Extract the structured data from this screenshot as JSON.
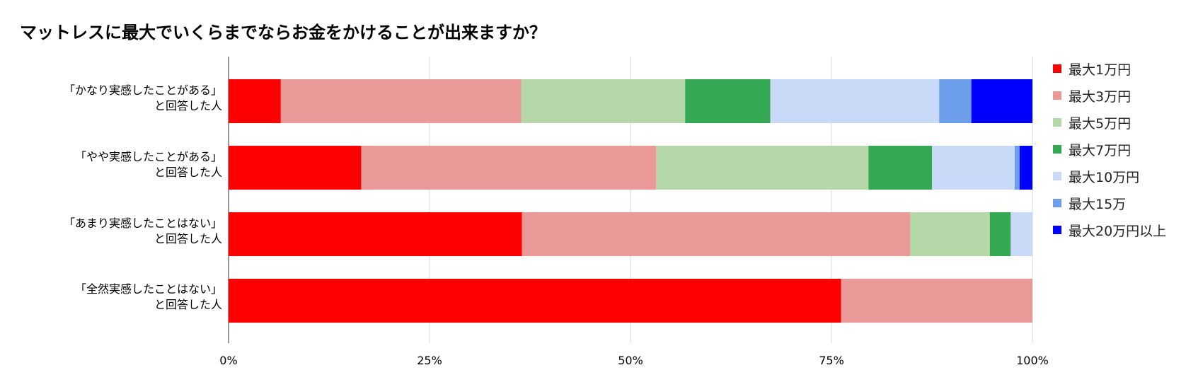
{
  "chart_data": {
    "type": "bar",
    "orientation": "horizontal",
    "stacked": "percent",
    "title": "マットレスに最大でいくらまでならお金をかけることが出来ますか？",
    "categories": [
      {
        "line1": "「かなり実感したことがある」",
        "line2": "と回答した人"
      },
      {
        "line1": "「やや実感したことがある」",
        "line2": "と回答した人"
      },
      {
        "line1": "「あまり実感したことはない」",
        "line2": "と回答した人"
      },
      {
        "line1": "「全然実感したことはない」",
        "line2": "と回答した人"
      }
    ],
    "series": [
      {
        "name": "最大1万円",
        "color": "#ff0000",
        "values": [
          6.5,
          16.5,
          36.5,
          76.2
        ]
      },
      {
        "name": "最大3万円",
        "color": "#ea9999",
        "values": [
          29.9,
          36.7,
          48.3,
          23.8
        ]
      },
      {
        "name": "最大5万円",
        "color": "#b6d7a8",
        "values": [
          20.4,
          26.4,
          9.9,
          0
        ]
      },
      {
        "name": "最大7万円",
        "color": "#34a853",
        "values": [
          10.6,
          7.9,
          2.6,
          0
        ]
      },
      {
        "name": "最大10万円",
        "color": "#c9daf8",
        "values": [
          21.0,
          10.3,
          2.7,
          0
        ]
      },
      {
        "name": "最大15万",
        "color": "#6d9eeb",
        "values": [
          4.0,
          0.6,
          0,
          0
        ]
      },
      {
        "name": "最大20万円以上",
        "color": "#0000ff",
        "values": [
          7.6,
          1.6,
          0,
          0
        ]
      }
    ],
    "xlim": [
      0,
      100
    ],
    "xticks": [
      "0%",
      "25%",
      "50%",
      "75%",
      "100%"
    ],
    "xlabel": "",
    "ylabel": "",
    "grid": true,
    "legend_position": "right"
  }
}
